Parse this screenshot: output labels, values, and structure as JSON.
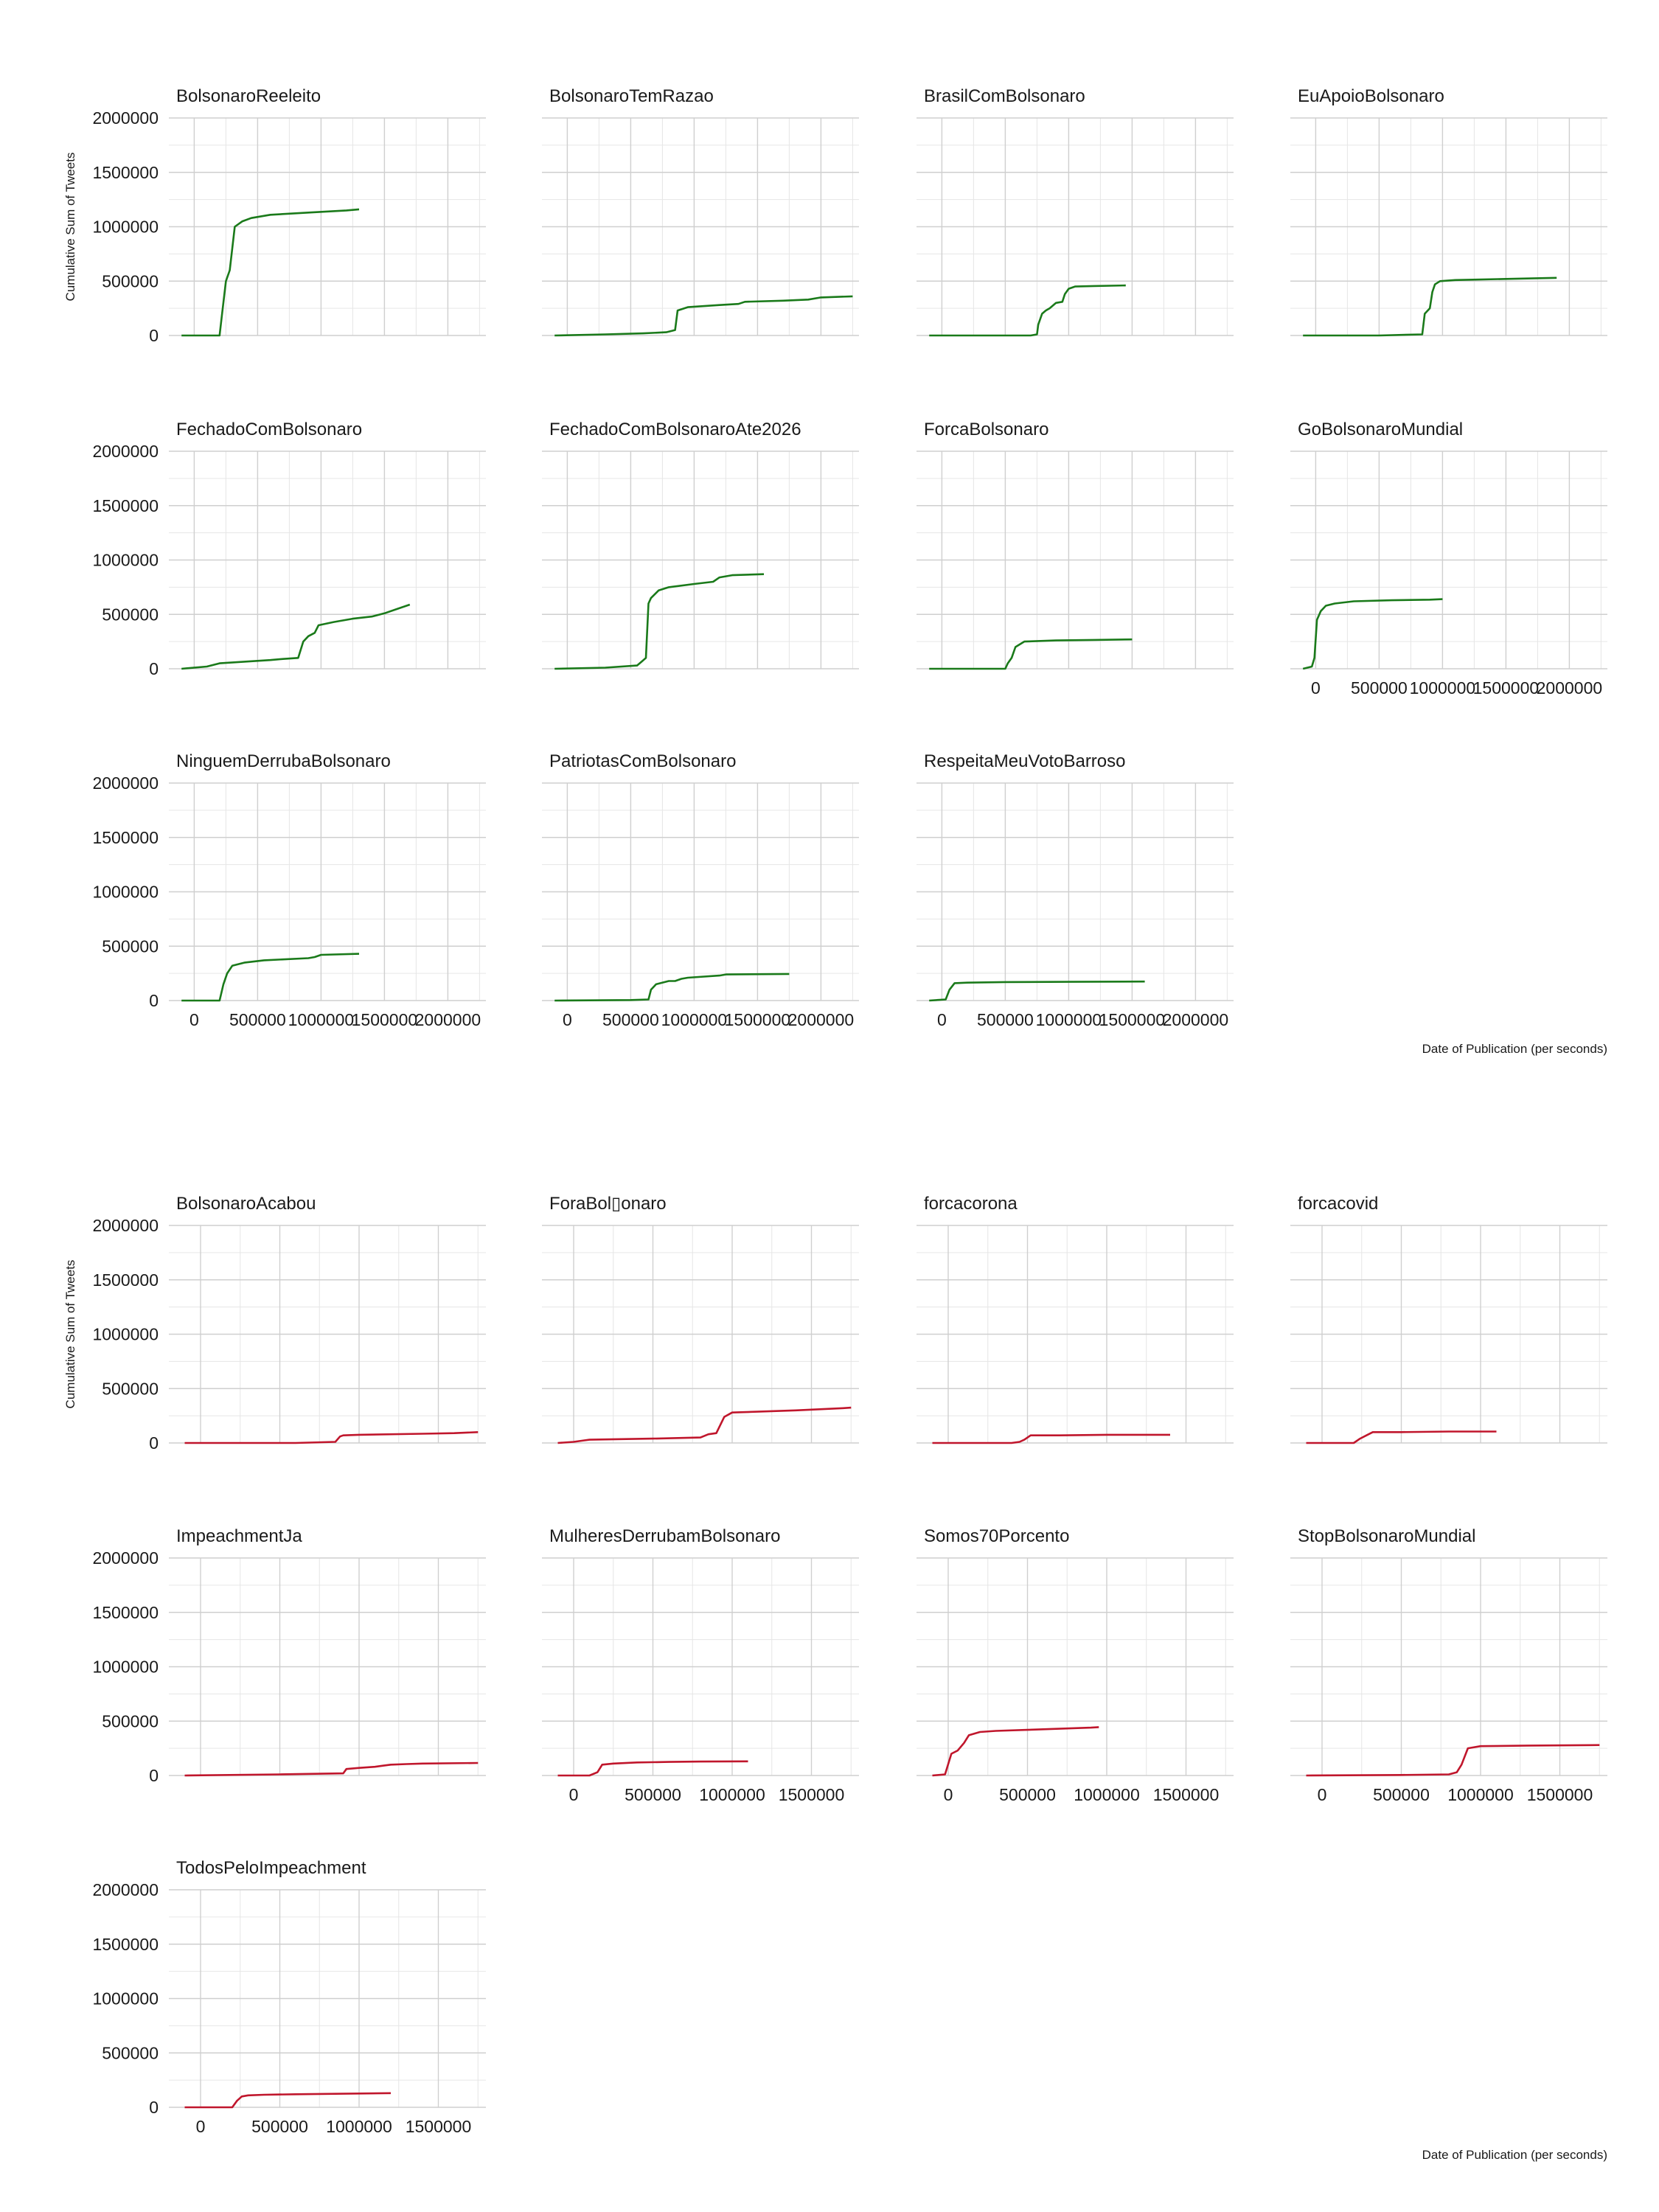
{
  "chart_data": [
    {
      "type": "line",
      "color": "#1a7a1a",
      "ylabel": "Cumulative Sum of Tweets",
      "xlabel": "Date of Publication (per seconds)",
      "ylim": [
        0,
        2000000
      ],
      "y_ticks": [
        0,
        500000,
        1000000,
        1500000,
        2000000
      ],
      "y_tick_labels": [
        "0",
        "500000",
        "1000000",
        "1500000",
        "2000000"
      ],
      "xlim": [
        -200000,
        2300000
      ],
      "x_ticks": [
        0,
        500000,
        1000000,
        1500000,
        2000000
      ],
      "x_tick_labels": [
        "0",
        "500000",
        "1000000",
        "1500000",
        "2000000"
      ],
      "grid": true,
      "panels": [
        {
          "name": "BolsonaroReeleito",
          "x": [
            -100000,
            200000,
            220000,
            250000,
            280000,
            320000,
            380000,
            450000,
            600000,
            900000,
            1200000,
            1300000
          ],
          "y": [
            0,
            0,
            200000,
            500000,
            600000,
            1000000,
            1050000,
            1080000,
            1110000,
            1130000,
            1150000,
            1160000
          ]
        },
        {
          "name": "BolsonaroTemRazao",
          "x": [
            -100000,
            300000,
            600000,
            780000,
            850000,
            870000,
            950000,
            1200000,
            1350000,
            1400000,
            1700000,
            1900000,
            2000000,
            2250000
          ],
          "y": [
            0,
            10000,
            20000,
            30000,
            50000,
            230000,
            260000,
            280000,
            290000,
            310000,
            320000,
            330000,
            350000,
            360000
          ]
        },
        {
          "name": "BrasilComBolsonaro",
          "x": [
            -100000,
            700000,
            750000,
            760000,
            790000,
            820000,
            850000,
            900000,
            950000,
            970000,
            1000000,
            1050000,
            1200000,
            1450000
          ],
          "y": [
            0,
            0,
            10000,
            100000,
            200000,
            230000,
            250000,
            300000,
            310000,
            380000,
            430000,
            450000,
            455000,
            460000
          ]
        },
        {
          "name": "EuApoioBolsonaro",
          "x": [
            -100000,
            500000,
            840000,
            860000,
            900000,
            920000,
            940000,
            980000,
            1100000,
            1500000,
            1900000
          ],
          "y": [
            0,
            0,
            10000,
            200000,
            250000,
            400000,
            470000,
            500000,
            510000,
            520000,
            530000
          ]
        },
        {
          "name": "FechadoComBolsonaro",
          "x": [
            -100000,
            100000,
            200000,
            600000,
            700000,
            820000,
            860000,
            900000,
            950000,
            980000,
            1100000,
            1200000,
            1250000,
            1400000,
            1500000,
            1600000,
            1700000
          ],
          "y": [
            0,
            20000,
            50000,
            80000,
            90000,
            100000,
            250000,
            300000,
            330000,
            400000,
            430000,
            450000,
            460000,
            480000,
            510000,
            550000,
            590000
          ]
        },
        {
          "name": "FechadoComBolsonaroAte2026",
          "x": [
            -100000,
            300000,
            550000,
            590000,
            620000,
            640000,
            660000,
            720000,
            800000,
            1000000,
            1150000,
            1200000,
            1300000,
            1550000
          ],
          "y": [
            0,
            10000,
            30000,
            70000,
            100000,
            600000,
            650000,
            720000,
            750000,
            780000,
            800000,
            840000,
            860000,
            870000
          ]
        },
        {
          "name": "ForcaBolsonaro",
          "x": [
            -100000,
            500000,
            520000,
            550000,
            580000,
            650000,
            900000,
            1200000,
            1500000
          ],
          "y": [
            0,
            0,
            50000,
            100000,
            200000,
            250000,
            260000,
            265000,
            270000
          ]
        },
        {
          "name": "GoBolsonaroMundial",
          "x": [
            -100000,
            -30000,
            -10000,
            10000,
            40000,
            80000,
            150000,
            300000,
            600000,
            900000,
            1000000
          ],
          "y": [
            0,
            20000,
            100000,
            450000,
            530000,
            580000,
            600000,
            620000,
            630000,
            635000,
            640000
          ]
        },
        {
          "name": "NinguemDerrubaBolsonaro",
          "x": [
            -100000,
            200000,
            230000,
            260000,
            300000,
            400000,
            550000,
            900000,
            950000,
            1000000,
            1300000
          ],
          "y": [
            0,
            0,
            150000,
            250000,
            320000,
            350000,
            370000,
            390000,
            400000,
            420000,
            430000
          ]
        },
        {
          "name": "PatriotasComBolsonaro",
          "x": [
            -100000,
            500000,
            640000,
            660000,
            700000,
            800000,
            850000,
            900000,
            950000,
            1200000,
            1250000,
            1750000
          ],
          "y": [
            0,
            5000,
            10000,
            100000,
            150000,
            180000,
            180000,
            200000,
            210000,
            230000,
            240000,
            245000
          ]
        },
        {
          "name": "RespeitaMeuVotoBarroso",
          "x": [
            -100000,
            30000,
            60000,
            100000,
            200000,
            500000,
            1000000,
            1600000
          ],
          "y": [
            0,
            10000,
            100000,
            160000,
            165000,
            170000,
            172000,
            175000
          ]
        }
      ]
    },
    {
      "type": "line",
      "color": "#c0162c",
      "ylabel": "Cumulative Sum of Tweets",
      "xlabel": "Date of Publication (per seconds)",
      "ylim": [
        0,
        2000000
      ],
      "y_ticks": [
        0,
        500000,
        1000000,
        1500000,
        2000000
      ],
      "y_tick_labels": [
        "0",
        "500000",
        "1000000",
        "1500000",
        "2000000"
      ],
      "xlim": [
        -200000,
        1800000
      ],
      "x_ticks": [
        0,
        500000,
        1000000,
        1500000
      ],
      "x_tick_labels": [
        "0",
        "500000",
        "1000000",
        "1500000"
      ],
      "grid": true,
      "panels": [
        {
          "name": "BolsonaroAcabou",
          "x": [
            -100000,
            600000,
            850000,
            880000,
            900000,
            1000000,
            1400000,
            1600000,
            1750000
          ],
          "y": [
            0,
            0,
            10000,
            60000,
            70000,
            75000,
            85000,
            90000,
            100000
          ]
        },
        {
          "name": "ForaBol▯onaro",
          "x": [
            -100000,
            0,
            50000,
            100000,
            500000,
            800000,
            850000,
            900000,
            950000,
            1000000,
            1400000,
            1700000,
            1750000
          ],
          "y": [
            0,
            10000,
            20000,
            30000,
            40000,
            50000,
            80000,
            90000,
            240000,
            280000,
            300000,
            320000,
            325000
          ]
        },
        {
          "name": "forcacorona",
          "x": [
            -100000,
            400000,
            450000,
            480000,
            520000,
            700000,
            1000000,
            1400000
          ],
          "y": [
            0,
            0,
            10000,
            30000,
            70000,
            70000,
            75000,
            75000
          ]
        },
        {
          "name": "forcacovid",
          "x": [
            -100000,
            200000,
            240000,
            280000,
            320000,
            500000,
            800000,
            1100000
          ],
          "y": [
            0,
            0,
            40000,
            70000,
            100000,
            100000,
            105000,
            105000
          ]
        },
        {
          "name": "ImpeachmentJa",
          "x": [
            -100000,
            500000,
            900000,
            920000,
            1000000,
            1100000,
            1150000,
            1200000,
            1300000,
            1400000,
            1750000
          ],
          "y": [
            0,
            10000,
            20000,
            60000,
            70000,
            80000,
            90000,
            100000,
            105000,
            110000,
            115000
          ]
        },
        {
          "name": "MulheresDerrubamBolsonaro",
          "x": [
            -100000,
            100000,
            150000,
            180000,
            250000,
            400000,
            600000,
            800000,
            1100000
          ],
          "y": [
            0,
            0,
            30000,
            100000,
            110000,
            120000,
            125000,
            128000,
            130000
          ]
        },
        {
          "name": "Somos70Porcento",
          "x": [
            -100000,
            -20000,
            20000,
            60000,
            100000,
            130000,
            200000,
            300000,
            500000,
            700000,
            900000,
            950000
          ],
          "y": [
            0,
            10000,
            200000,
            230000,
            300000,
            370000,
            400000,
            410000,
            420000,
            430000,
            440000,
            445000
          ]
        },
        {
          "name": "StopBolsonaroMundial",
          "x": [
            -100000,
            500000,
            800000,
            850000,
            880000,
            920000,
            1000000,
            1300000,
            1750000
          ],
          "y": [
            0,
            5000,
            10000,
            30000,
            100000,
            250000,
            270000,
            275000,
            280000
          ]
        },
        {
          "name": "TodosPeloImpeachment",
          "x": [
            -100000,
            200000,
            230000,
            260000,
            300000,
            400000,
            600000,
            900000,
            1200000
          ],
          "y": [
            0,
            0,
            60000,
            100000,
            110000,
            115000,
            120000,
            125000,
            130000
          ]
        }
      ]
    }
  ]
}
